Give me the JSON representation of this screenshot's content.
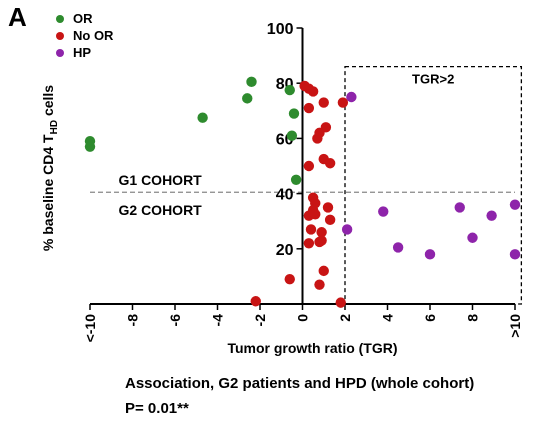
{
  "panel_letter": "A",
  "legend": [
    {
      "label": "OR",
      "color": "#2e8b2e"
    },
    {
      "label": "No OR",
      "color": "#c81414"
    },
    {
      "label": "HP",
      "color": "#8e24aa"
    }
  ],
  "footer": {
    "line1": "Association, G2 patients and HPD (whole cohort)",
    "line2": "P= 0.01**"
  },
  "chart_data": {
    "type": "scatter",
    "xlabel": "Tumor growth ratio (TGR)",
    "ylabel": "% baseline CD4 T",
    "ylabel_sub": "HD",
    "ylabel_suffix": " cells",
    "xlim": [
      -10,
      10
    ],
    "ylim": [
      0,
      100
    ],
    "xticks": [
      {
        "value": -10,
        "label": "<-10"
      },
      {
        "value": -8,
        "label": "-8"
      },
      {
        "value": -6,
        "label": "-6"
      },
      {
        "value": -4,
        "label": "-4"
      },
      {
        "value": -2,
        "label": "-2"
      },
      {
        "value": 0,
        "label": "0"
      },
      {
        "value": 2,
        "label": "2"
      },
      {
        "value": 4,
        "label": "4"
      },
      {
        "value": 6,
        "label": "6"
      },
      {
        "value": 8,
        "label": "8"
      },
      {
        "value": 10,
        "label": ">10"
      }
    ],
    "yticks": [
      {
        "value": 20,
        "label": "20"
      },
      {
        "value": 40,
        "label": "40"
      },
      {
        "value": 60,
        "label": "60"
      },
      {
        "value": 80,
        "label": "80"
      },
      {
        "value": 100,
        "label": "100"
      }
    ],
    "cutoff_y": 40.5,
    "region_labels": [
      {
        "text": "G1 COHORT",
        "x": -6.7,
        "y": 45
      },
      {
        "text": "G2 COHORT",
        "x": -6.7,
        "y": 34
      }
    ],
    "tgr_box": {
      "label": "TGR>2",
      "x0": 2,
      "x1": 10.3,
      "y0": 0,
      "y1": 86
    },
    "series": [
      {
        "name": "OR",
        "color": "#2e8b2e",
        "points": [
          [
            -10,
            59
          ],
          [
            -10,
            57
          ],
          [
            -4.7,
            67.5
          ],
          [
            -2.4,
            80.5
          ],
          [
            -2.6,
            74.5
          ],
          [
            -0.6,
            77.5
          ],
          [
            -0.4,
            69
          ],
          [
            -0.5,
            61
          ],
          [
            -0.3,
            45
          ]
        ]
      },
      {
        "name": "No OR",
        "color": "#c81414",
        "points": [
          [
            -2.2,
            1
          ],
          [
            0.1,
            79
          ],
          [
            0.3,
            78
          ],
          [
            0.5,
            77
          ],
          [
            1.0,
            73
          ],
          [
            0.3,
            71
          ],
          [
            1.9,
            73
          ],
          [
            1.1,
            64
          ],
          [
            0.8,
            62
          ],
          [
            0.7,
            60
          ],
          [
            0.3,
            50
          ],
          [
            1.0,
            52.5
          ],
          [
            1.3,
            51
          ],
          [
            0.5,
            38.5
          ],
          [
            0.6,
            36.5
          ],
          [
            0.5,
            34
          ],
          [
            1.2,
            35
          ],
          [
            0.3,
            32
          ],
          [
            0.6,
            32.5
          ],
          [
            1.3,
            30.5
          ],
          [
            0.4,
            27
          ],
          [
            0.9,
            26
          ],
          [
            0.9,
            23
          ],
          [
            0.3,
            22
          ],
          [
            0.8,
            22.5
          ],
          [
            1.0,
            12
          ],
          [
            -0.6,
            9
          ],
          [
            0.8,
            7
          ],
          [
            1.8,
            0.5
          ]
        ]
      },
      {
        "name": "HP",
        "color": "#8e24aa",
        "points": [
          [
            2.3,
            75
          ],
          [
            2.1,
            27
          ],
          [
            3.8,
            33.5
          ],
          [
            4.5,
            20.5
          ],
          [
            6.0,
            18
          ],
          [
            7.4,
            35
          ],
          [
            8.0,
            24
          ],
          [
            8.9,
            32
          ],
          [
            10,
            36
          ],
          [
            10,
            18
          ]
        ]
      }
    ]
  }
}
